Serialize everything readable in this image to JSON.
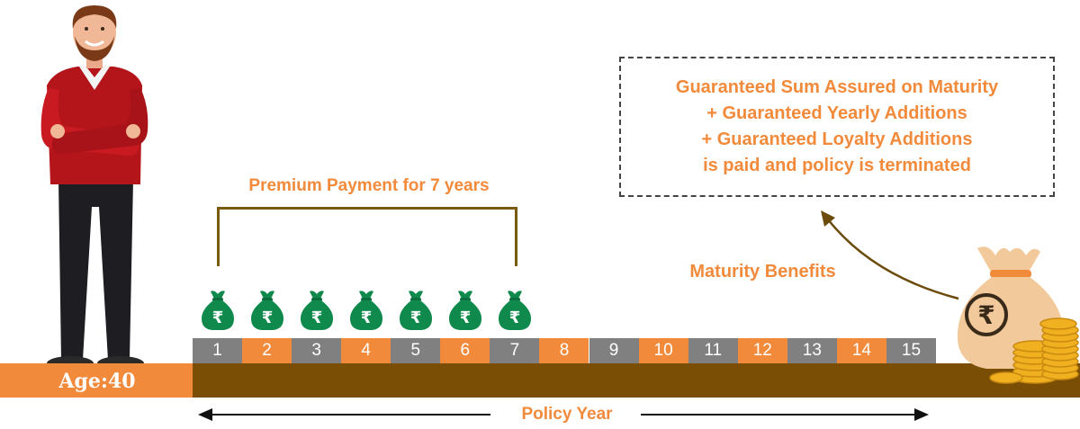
{
  "colors": {
    "accent": "#f28a3b",
    "brown": "#7a4e04",
    "gray": "#808080",
    "green": "#0f8a4c"
  },
  "premium_label": "Premium Payment for 7 years",
  "premium_bag_symbol": "₹",
  "premium_bag_count": 7,
  "years": [
    "1",
    "2",
    "3",
    "4",
    "5",
    "6",
    "7",
    "8",
    "9",
    "10",
    "11",
    "12",
    "13",
    "14",
    "15"
  ],
  "age_label": "Age:40",
  "policy_year_label": "Policy Year",
  "maturity_label": "Maturity Benefits",
  "maturity_bag_symbol": "₹",
  "benefit_lines": [
    "Guaranteed Sum Assured on Maturity",
    "+ Guaranteed Yearly Additions",
    "+ Guaranteed Loyalty Additions",
    "is paid and policy is terminated"
  ],
  "icons": {
    "person": "man-crossed-arms-illustration",
    "premium_bag": "rupee-money-bag-icon",
    "maturity_bag": "rupee-money-bag-with-coins-icon"
  }
}
